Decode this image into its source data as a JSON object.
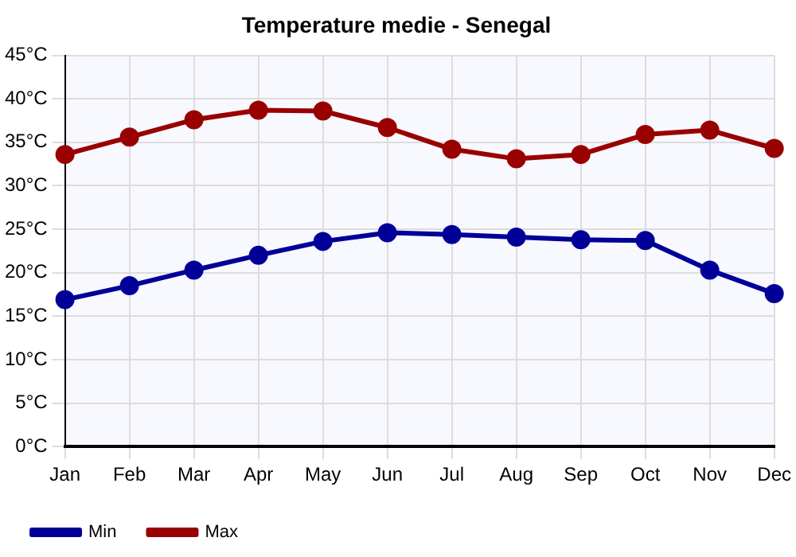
{
  "chart_data": {
    "type": "line",
    "title": "Temperature medie - Senegal",
    "categories": [
      "Jan",
      "Feb",
      "Mar",
      "Apr",
      "May",
      "Jun",
      "Jul",
      "Aug",
      "Sep",
      "Oct",
      "Nov",
      "Dec"
    ],
    "series": [
      {
        "name": "Min",
        "color": "#000099",
        "values": [
          16.9,
          18.5,
          20.3,
          22.0,
          23.6,
          24.6,
          24.4,
          24.1,
          23.8,
          23.7,
          20.3,
          17.6
        ]
      },
      {
        "name": "Max",
        "color": "#990000",
        "values": [
          33.6,
          35.6,
          37.6,
          38.7,
          38.6,
          36.7,
          34.2,
          33.1,
          33.6,
          35.9,
          36.4,
          34.3
        ]
      }
    ],
    "ylim": [
      0,
      45
    ],
    "yticks": [
      {
        "value": 0,
        "label": "0°C"
      },
      {
        "value": 5,
        "label": "5°C"
      },
      {
        "value": 10,
        "label": "10°C"
      },
      {
        "value": 15,
        "label": "15°C"
      },
      {
        "value": 20,
        "label": "20°C"
      },
      {
        "value": 25,
        "label": "25°C"
      },
      {
        "value": 30,
        "label": "30°C"
      },
      {
        "value": 35,
        "label": "35°C"
      },
      {
        "value": 40,
        "label": "40°C"
      },
      {
        "value": 45,
        "label": "45°C"
      }
    ],
    "grid": true,
    "legend": "bottom left",
    "marker": "circle",
    "line_style": "solid"
  }
}
